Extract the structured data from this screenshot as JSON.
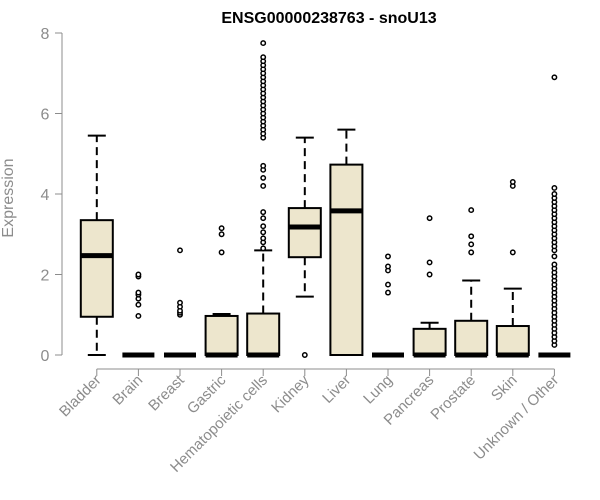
{
  "chart_data": {
    "type": "boxplot",
    "title": "ENSG00000238763 - snoU13",
    "xlabel": "",
    "ylabel": "Expression",
    "ylim": [
      0,
      8
    ],
    "yticks": [
      0,
      2,
      4,
      6,
      8
    ],
    "box_color": "#ede6cd",
    "categories": [
      "Bladder",
      "Brain",
      "Breast",
      "Gastric",
      "Hematopoietic cells",
      "Kidney",
      "Liver",
      "Lung",
      "Pancreas",
      "Prostate",
      "Skin",
      "Unknown / Other"
    ],
    "boxes": [
      {
        "q1": 0.95,
        "median": 2.47,
        "q3": 3.35,
        "whisker_low": 0,
        "whisker_high": 5.45,
        "outliers": []
      },
      {
        "q1": 0,
        "median": 0,
        "q3": 0,
        "whisker_low": 0,
        "whisker_high": 0,
        "outliers": [
          0.97,
          1.25,
          1.4,
          1.5,
          1.55,
          1.95,
          2.0
        ]
      },
      {
        "q1": 0,
        "median": 0,
        "q3": 0,
        "whisker_low": 0,
        "whisker_high": 0,
        "outliers": [
          1.0,
          1.05,
          1.1,
          1.2,
          1.3,
          2.6
        ]
      },
      {
        "q1": 0,
        "median": 0,
        "q3": 0.97,
        "whisker_low": 0,
        "whisker_high": 1.02,
        "outliers": [
          2.55,
          3.0,
          3.15
        ]
      },
      {
        "q1": 0,
        "median": 0,
        "q3": 1.03,
        "whisker_low": 0,
        "whisker_high": 2.6,
        "outliers": [
          2.65,
          2.8,
          2.9,
          3.05,
          3.2,
          3.4,
          3.55,
          4.2,
          4.4,
          4.6,
          4.7,
          5.4,
          5.5,
          5.6,
          5.7,
          5.8,
          5.9,
          6.0,
          6.1,
          6.2,
          6.3,
          6.4,
          6.5,
          6.6,
          6.7,
          6.8,
          6.9,
          7.0,
          7.1,
          7.2,
          7.3,
          7.4,
          7.75
        ]
      },
      {
        "q1": 2.43,
        "median": 3.18,
        "q3": 3.65,
        "whisker_low": 1.45,
        "whisker_high": 5.4,
        "outliers": [
          0
        ]
      },
      {
        "q1": 0,
        "median": 3.58,
        "q3": 4.73,
        "whisker_low": 0,
        "whisker_high": 5.6,
        "outliers": []
      },
      {
        "q1": 0,
        "median": 0,
        "q3": 0,
        "whisker_low": 0,
        "whisker_high": 0,
        "outliers": [
          1.55,
          1.75,
          2.1,
          2.2,
          2.45
        ]
      },
      {
        "q1": 0,
        "median": 0,
        "q3": 0.65,
        "whisker_low": 0,
        "whisker_high": 0.8,
        "outliers": [
          2.0,
          2.3,
          3.4
        ]
      },
      {
        "q1": 0,
        "median": 0,
        "q3": 0.85,
        "whisker_low": 0,
        "whisker_high": 1.85,
        "outliers": [
          2.55,
          2.75,
          2.95,
          3.6
        ]
      },
      {
        "q1": 0,
        "median": 0,
        "q3": 0.72,
        "whisker_low": 0,
        "whisker_high": 1.65,
        "outliers": [
          2.55,
          4.2,
          4.3
        ]
      },
      {
        "q1": 0,
        "median": 0,
        "q3": 0,
        "whisker_low": 0,
        "whisker_high": 0,
        "outliers": [
          0.25,
          0.35,
          0.45,
          0.55,
          0.65,
          0.75,
          0.85,
          0.95,
          1.05,
          1.15,
          1.25,
          1.35,
          1.45,
          1.55,
          1.65,
          1.75,
          1.85,
          1.95,
          2.05,
          2.15,
          2.25,
          2.45,
          2.6,
          2.7,
          2.8,
          2.9,
          3.0,
          3.1,
          3.2,
          3.3,
          3.4,
          3.5,
          3.6,
          3.7,
          3.8,
          3.9,
          4.0,
          4.15,
          6.9
        ]
      }
    ]
  }
}
